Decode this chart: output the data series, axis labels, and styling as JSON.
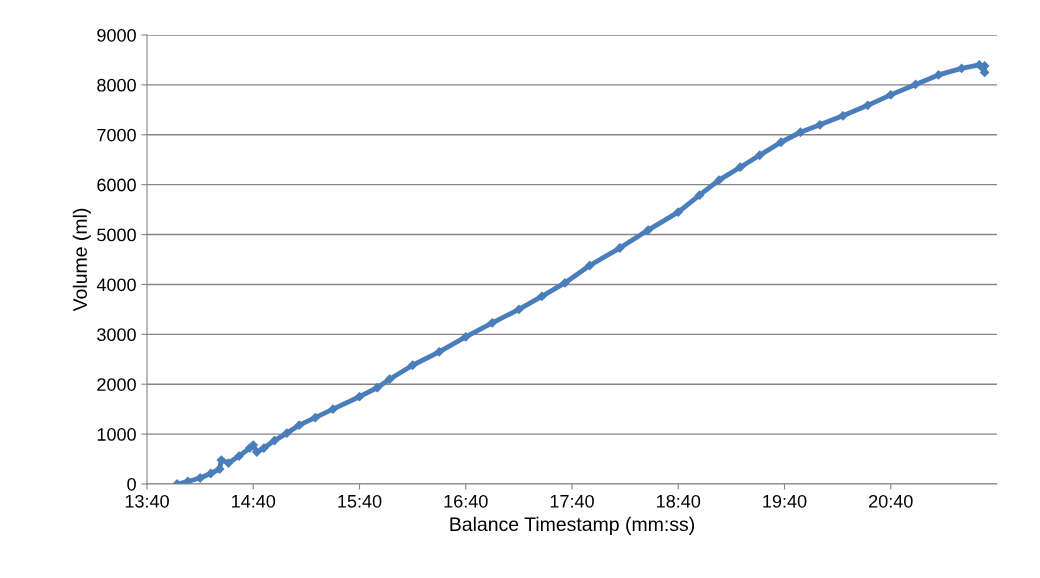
{
  "chart_data": {
    "type": "line",
    "xlabel": "Balance Timestamp (mm:ss)",
    "ylabel": "Volume (ml)",
    "x": [
      837,
      843,
      850,
      856,
      861,
      862,
      866,
      872,
      878,
      880,
      882,
      886,
      892,
      899,
      906,
      915,
      925,
      940,
      950,
      957,
      970,
      985,
      1000,
      1015,
      1030,
      1043,
      1056,
      1070,
      1087,
      1103,
      1120,
      1132,
      1143,
      1155,
      1166,
      1178,
      1189,
      1200,
      1213,
      1227,
      1240,
      1254,
      1267,
      1280,
      1290,
      1293,
      1293
    ],
    "series": [
      {
        "color": "#4a7ebb",
        "values": [
          0,
          50,
          120,
          210,
          300,
          480,
          420,
          560,
          720,
          780,
          640,
          720,
          870,
          1020,
          1180,
          1330,
          1500,
          1750,
          1930,
          2100,
          2380,
          2650,
          2950,
          3230,
          3500,
          3760,
          4030,
          4380,
          4730,
          5090,
          5450,
          5790,
          6090,
          6350,
          6590,
          6850,
          7050,
          7200,
          7380,
          7590,
          7800,
          8010,
          8200,
          8330,
          8400,
          8250,
          8380
        ]
      }
    ],
    "xlim": [
      820,
      1300
    ],
    "xticks": [
      {
        "value": 820,
        "label": "13:40"
      },
      {
        "value": 880,
        "label": "14:40"
      },
      {
        "value": 940,
        "label": "15:40"
      },
      {
        "value": 1000,
        "label": "16:40"
      },
      {
        "value": 1060,
        "label": "17:40"
      },
      {
        "value": 1120,
        "label": "18:40"
      },
      {
        "value": 1180,
        "label": "19:40"
      },
      {
        "value": 1240,
        "label": "20:40"
      }
    ],
    "ylim": [
      0,
      9000
    ],
    "yticks": [
      0,
      1000,
      2000,
      3000,
      4000,
      5000,
      6000,
      7000,
      8000,
      9000
    ],
    "grid": "y",
    "marker": "diamond",
    "line_style": "solid"
  }
}
